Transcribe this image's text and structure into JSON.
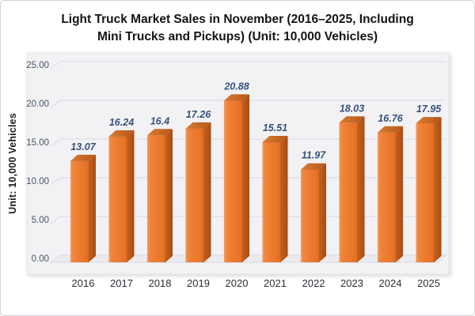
{
  "header": {
    "title_line1": "Light Truck Market Sales in November (2016–2025, Including",
    "title_line2": "Mini Trucks and Pickups) (Unit: 10,000 Vehicles)"
  },
  "chart_data": {
    "type": "bar",
    "subtype": "3d-column",
    "title": "Light Truck Market Sales in November (2016–2025, Including Mini Trucks and Pickups) (Unit: 10,000 Vehicles)",
    "categories": [
      "2016",
      "2017",
      "2018",
      "2019",
      "2020",
      "2021",
      "2022",
      "2023",
      "2024",
      "2025"
    ],
    "values": [
      13.07,
      16.24,
      16.4,
      17.26,
      20.88,
      15.51,
      11.97,
      18.03,
      16.76,
      17.95
    ],
    "value_labels": [
      "13.07",
      "16.24",
      "16.4",
      "17.26",
      "20.88",
      "15.51",
      "11.97",
      "18.03",
      "16.76",
      "17.95"
    ],
    "xlabel": "",
    "ylabel": "Unit: 10,000 Vehicles",
    "ylim": [
      0,
      25
    ],
    "ytick_step": 5,
    "ytick_labels": [
      "0.00",
      "5.00",
      "10.00",
      "15.00",
      "20.00",
      "25.00"
    ],
    "grid": true,
    "legend": false,
    "colors": {
      "bar_front": "#ed7d31",
      "bar_front_highlight": "#f8a269",
      "bar_front_shade": "#df6c20",
      "bar_side": "#b05312",
      "bar_top": "#c96722",
      "value_label": "#37517b",
      "tick_label": "#44546a",
      "category_label": "#2b3036",
      "gridline": "#d6dbe6",
      "panel_bg": "#f2f2f4",
      "floor_bg": "#ebebee"
    }
  }
}
